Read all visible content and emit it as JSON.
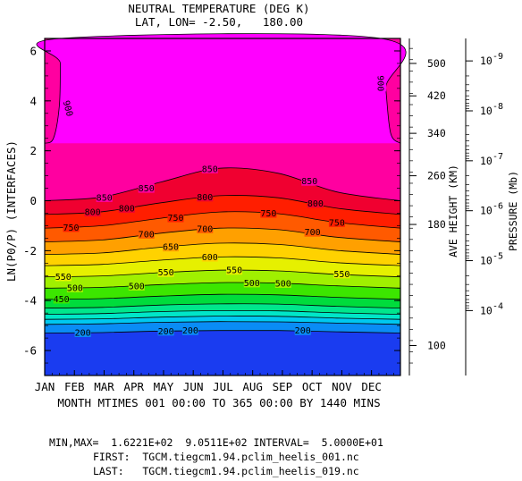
{
  "chart_data": {
    "type": "contour",
    "title": "NEUTRAL TEMPERATURE (DEG K)",
    "subtitle": "LAT, LON= -2.50,   180.00",
    "xlabel": "MONTH MTIMES 001 00:00 TO 365 00:00 BY 1440 MINS",
    "ylabel": "LN(P0/P) (INTERFACES)",
    "xlim": [
      1,
      365
    ],
    "ylim": [
      -7,
      6.5
    ],
    "x_ticks": [
      "JAN",
      "FEB",
      "MAR",
      "APR",
      "MAY",
      "JUN",
      "JUL",
      "AUG",
      "SEP",
      "OCT",
      "NOV",
      "DEC"
    ],
    "y_ticks": [
      "6",
      "4",
      "2",
      "0",
      "-2",
      "-4",
      "-6"
    ],
    "y_tick_values": [
      6,
      4,
      2,
      0,
      -2,
      -4,
      -6
    ],
    "right_axis_height": {
      "label": "AVE HEIGHT (KM)",
      "ticks": [
        "500",
        "420",
        "340",
        "260",
        "180",
        "100"
      ],
      "tick_positions": [
        5.5,
        4.2,
        2.7,
        1.0,
        -0.95,
        -5.8
      ]
    },
    "right_axis_pressure": {
      "label": "PRESSURE (Mb)",
      "ticks": [
        "10",
        "10",
        "10",
        "10",
        "10",
        "10"
      ],
      "tick_exponents": [
        "-9",
        "-8",
        "-7",
        "-6",
        "-5",
        "-4"
      ],
      "tick_positions": [
        5.6,
        3.6,
        1.6,
        -0.4,
        -2.4,
        -4.4
      ]
    },
    "contour_interval": 50,
    "levels": [
      200,
      250,
      300,
      350,
      400,
      450,
      500,
      550,
      600,
      650,
      700,
      750,
      800,
      850,
      900
    ],
    "series": [
      {
        "level": 200,
        "labels": [
          "200",
          "200",
          "200",
          "200"
        ],
        "x": [
          1,
          60,
          120,
          180,
          240,
          300,
          365
        ],
        "y": [
          -5.3,
          -5.28,
          -5.22,
          -5.2,
          -5.2,
          -5.25,
          -5.3
        ]
      },
      {
        "level": 250,
        "x": [
          1,
          60,
          120,
          180,
          240,
          300,
          365
        ],
        "y": [
          -4.95,
          -4.93,
          -4.87,
          -4.84,
          -4.85,
          -4.9,
          -4.95
        ]
      },
      {
        "level": 300,
        "x": [
          1,
          60,
          120,
          180,
          240,
          300,
          365
        ],
        "y": [
          -4.75,
          -4.73,
          -4.66,
          -4.62,
          -4.63,
          -4.7,
          -4.75
        ]
      },
      {
        "level": 350,
        "x": [
          1,
          60,
          120,
          180,
          240,
          300,
          365
        ],
        "y": [
          -4.55,
          -4.52,
          -4.44,
          -4.4,
          -4.41,
          -4.49,
          -4.55
        ]
      },
      {
        "level": 400,
        "x": [
          1,
          60,
          120,
          180,
          240,
          300,
          365
        ],
        "y": [
          -4.3,
          -4.27,
          -4.18,
          -4.13,
          -4.14,
          -4.23,
          -4.3
        ]
      },
      {
        "level": 450,
        "labels": [
          "450"
        ],
        "x": [
          1,
          60,
          120,
          180,
          240,
          300,
          365
        ],
        "y": [
          -3.95,
          -3.92,
          -3.82,
          -3.75,
          -3.77,
          -3.87,
          -3.95
        ]
      },
      {
        "level": 500,
        "labels": [
          "500",
          "500",
          "500",
          "500"
        ],
        "x": [
          1,
          60,
          120,
          180,
          240,
          300,
          365
        ],
        "y": [
          -3.5,
          -3.47,
          -3.36,
          -3.28,
          -3.3,
          -3.41,
          -3.5
        ]
      },
      {
        "level": 550,
        "labels": [
          "550",
          "550",
          "550",
          "550"
        ],
        "x": [
          1,
          60,
          120,
          180,
          240,
          300,
          365
        ],
        "y": [
          -3.05,
          -3.01,
          -2.88,
          -2.78,
          -2.81,
          -2.95,
          -3.05
        ]
      },
      {
        "level": 600,
        "labels": [
          "600"
        ],
        "x": [
          1,
          60,
          120,
          180,
          240,
          300,
          365
        ],
        "y": [
          -2.6,
          -2.55,
          -2.38,
          -2.25,
          -2.29,
          -2.48,
          -2.6
        ]
      },
      {
        "level": 650,
        "labels": [
          "650"
        ],
        "x": [
          1,
          60,
          120,
          180,
          240,
          300,
          365
        ],
        "y": [
          -2.15,
          -2.09,
          -1.86,
          -1.7,
          -1.75,
          -1.99,
          -2.15
        ]
      },
      {
        "level": 700,
        "labels": [
          "700",
          "700",
          "700"
        ],
        "x": [
          1,
          60,
          120,
          180,
          240,
          300,
          365
        ],
        "y": [
          -1.65,
          -1.57,
          -1.3,
          -1.1,
          -1.16,
          -1.46,
          -1.65
        ]
      },
      {
        "level": 750,
        "labels": [
          "750",
          "750",
          "750",
          "750"
        ],
        "x": [
          1,
          60,
          120,
          180,
          240,
          300,
          365
        ],
        "y": [
          -1.1,
          -1.0,
          -0.7,
          -0.45,
          -0.52,
          -0.87,
          -1.1
        ]
      },
      {
        "level": 800,
        "labels": [
          "800",
          "800",
          "800",
          "800"
        ],
        "x": [
          1,
          60,
          120,
          180,
          240,
          300,
          365
        ],
        "y": [
          -0.55,
          -0.44,
          -0.08,
          0.2,
          0.12,
          -0.3,
          -0.55
        ]
      },
      {
        "level": 850,
        "labels": [
          "850",
          "850",
          "850",
          "850"
        ],
        "x": [
          1,
          60,
          120,
          180,
          240,
          300,
          365
        ],
        "y": [
          0.0,
          0.15,
          0.75,
          1.3,
          1.1,
          0.35,
          0.0
        ]
      },
      {
        "level": 900,
        "labels": [
          "900",
          "900"
        ],
        "x": [
          1,
          10,
          16,
          17,
          17,
          345,
          350,
          355,
          365
        ],
        "y": [
          2.3,
          2.5,
          3.8,
          5.5,
          6.5,
          6.5,
          4.5,
          2.7,
          2.3
        ]
      }
    ],
    "legend": "none",
    "grid": false
  },
  "footer": {
    "minmax": "MIN,MAX=  1.6221E+02  9.0511E+02 INTERVAL=  5.0000E+01",
    "first": "FIRST:  TGCM.tiegcm1.94.pclim_heelis_001.nc",
    "last": "LAST:   TGCM.tiegcm1.94.pclim_heelis_019.nc"
  },
  "colors": {
    "below_200": "#1a3cf0",
    "200_250": "#0a8cf5",
    "250_300": "#00c8f0",
    "300_350": "#00e6c8",
    "350_400": "#00e68c",
    "400_450": "#00dc3c",
    "450_500": "#3ce600",
    "500_550": "#a0f000",
    "550_600": "#e6f000",
    "600_650": "#ffd200",
    "650_700": "#ffa000",
    "700_750": "#ff5a00",
    "750_800": "#ff1e00",
    "800_850": "#f00030",
    "850_900": "#ff00a0",
    "above_900": "#ff00ff"
  }
}
